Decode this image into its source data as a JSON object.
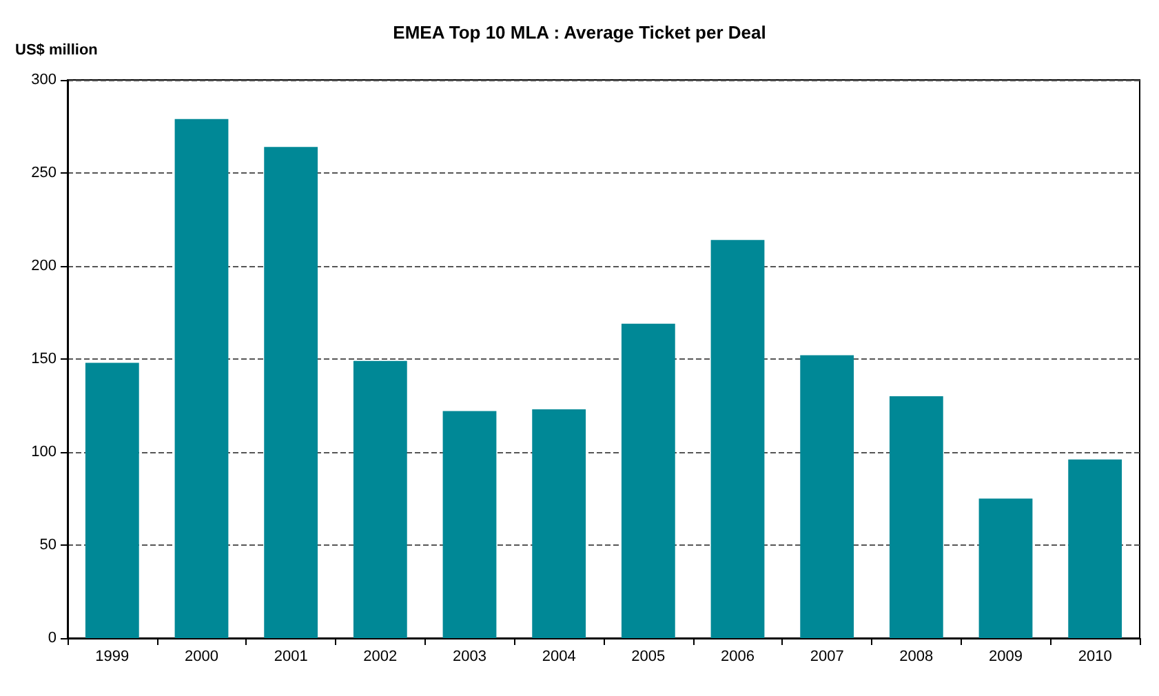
{
  "chart_data": {
    "type": "bar",
    "title": "EMEA Top 10 MLA : Average Ticket per Deal",
    "ylabel": "US$ million",
    "categories": [
      "1999",
      "2000",
      "2001",
      "2002",
      "2003",
      "2004",
      "2005",
      "2006",
      "2007",
      "2008",
      "2009",
      "2010"
    ],
    "values": [
      148,
      279,
      264,
      149,
      122,
      123,
      169,
      214,
      152,
      130,
      75,
      96
    ],
    "color": "#008896",
    "ylim": [
      0,
      300
    ],
    "yticks": [
      0,
      50,
      100,
      150,
      200,
      250,
      300
    ],
    "grid": "y"
  }
}
